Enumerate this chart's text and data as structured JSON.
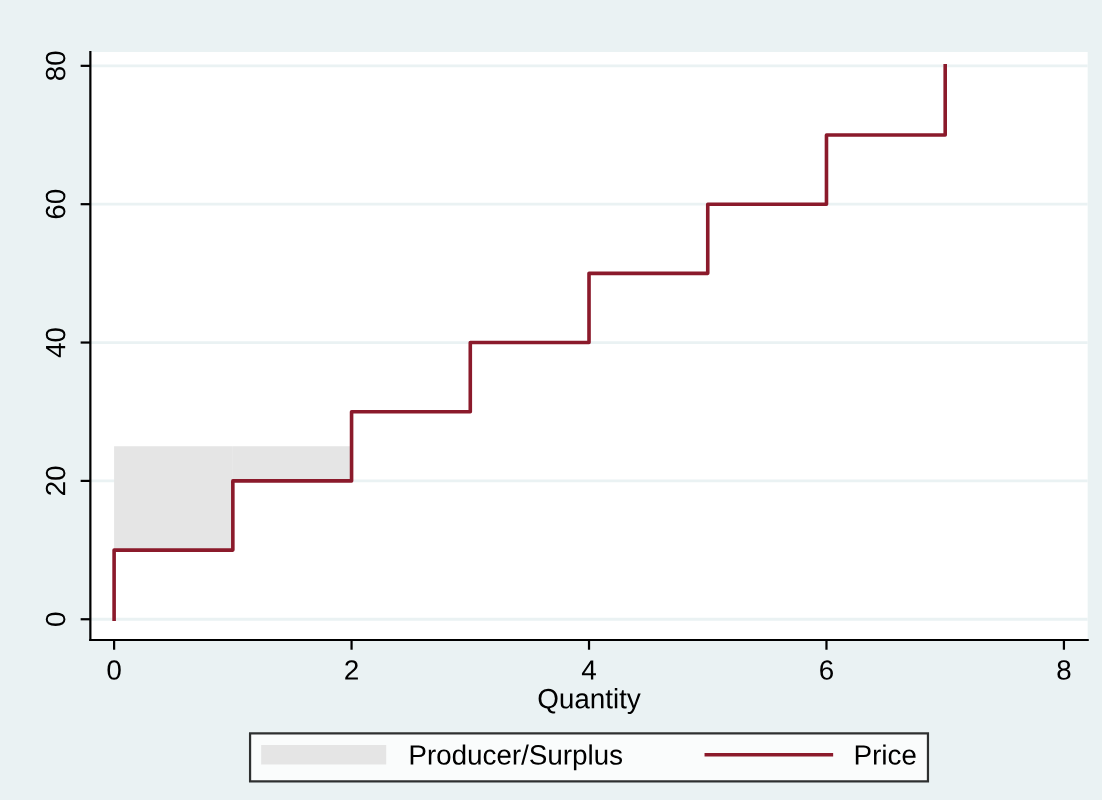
{
  "chart_data": {
    "type": "line",
    "xlabel": "Quantity",
    "xlim": [
      -0.2,
      8.2
    ],
    "ylim": [
      -3,
      82
    ],
    "xticks": [
      0,
      2,
      4,
      6,
      8
    ],
    "yticks": [
      0,
      20,
      40,
      60,
      80
    ],
    "grid": "y",
    "legend": "bottom",
    "series": [
      {
        "name": "Producer/Surplus",
        "type": "bar",
        "color": "#e5e5e5",
        "x": [
          0.5,
          1.5
        ],
        "base": [
          10,
          20
        ],
        "values": [
          15,
          5
        ]
      },
      {
        "name": "Price",
        "color": "#8b1a2b",
        "x": [
          0,
          0,
          1,
          1,
          2,
          2,
          3,
          3,
          4,
          4,
          5,
          5,
          6,
          6,
          7,
          7
        ],
        "values": [
          0,
          10,
          10,
          20,
          20,
          30,
          30,
          40,
          40,
          50,
          50,
          60,
          60,
          70,
          70,
          80
        ]
      }
    ]
  }
}
